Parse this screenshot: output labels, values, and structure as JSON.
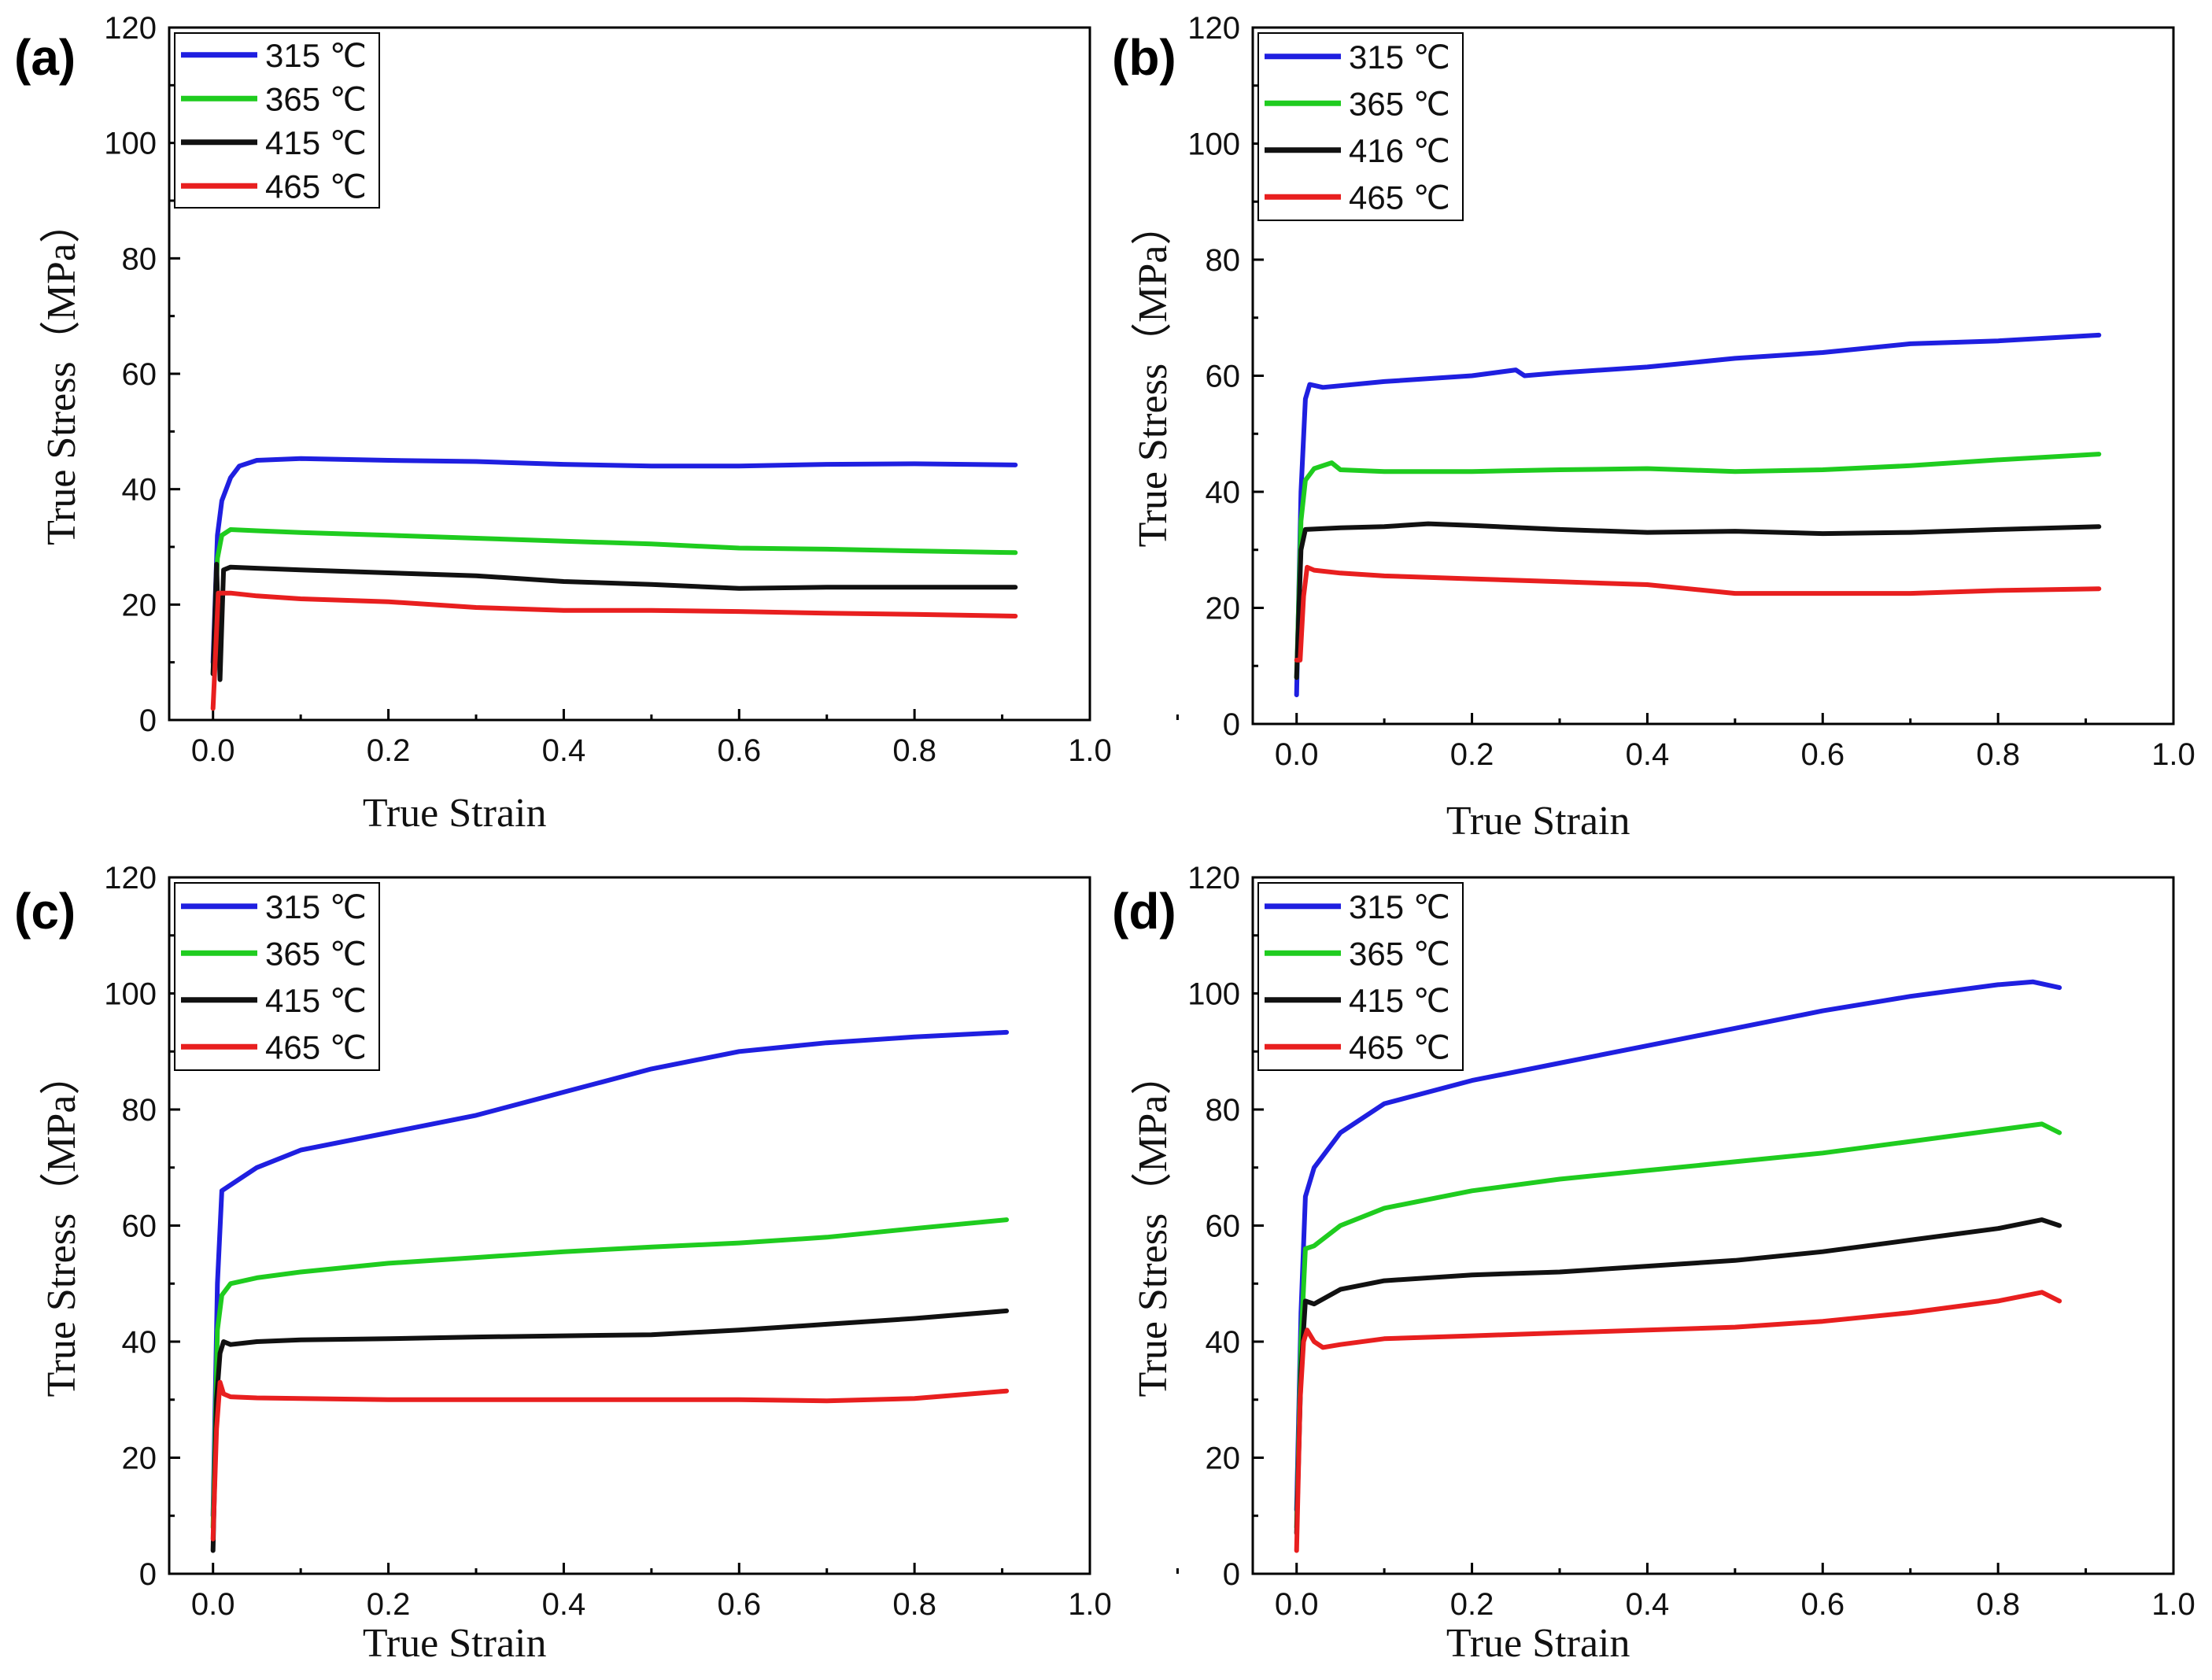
{
  "chart_data": [
    {
      "type": "line",
      "panel_label": "(a)",
      "xlabel": "True Strain",
      "ylabel": "True Stress（MPa）",
      "xlim": [
        -0.05,
        1.0
      ],
      "ylim": [
        0,
        120
      ],
      "xticks": [
        "0.0",
        "0.2",
        "0.4",
        "0.6",
        "0.8",
        "1.0"
      ],
      "yticks": [
        "0",
        "20",
        "40",
        "60",
        "80",
        "100",
        "120"
      ],
      "legend_position": "top-left",
      "series": [
        {
          "name": "315 ℃",
          "color": "#1f1fe0",
          "x": [
            0.0,
            0.005,
            0.01,
            0.02,
            0.03,
            0.05,
            0.1,
            0.2,
            0.3,
            0.4,
            0.5,
            0.6,
            0.7,
            0.8,
            0.915
          ],
          "y": [
            10,
            32,
            38,
            42,
            44,
            45,
            45.3,
            45,
            44.8,
            44.3,
            44,
            44,
            44.3,
            44.4,
            44.2
          ]
        },
        {
          "name": "365 ℃",
          "color": "#1fcc1f",
          "x": [
            0.0,
            0.005,
            0.01,
            0.02,
            0.05,
            0.1,
            0.2,
            0.3,
            0.4,
            0.5,
            0.6,
            0.7,
            0.8,
            0.915
          ],
          "y": [
            8,
            28,
            32,
            33,
            32.8,
            32.5,
            32,
            31.5,
            31,
            30.5,
            29.8,
            29.6,
            29.3,
            29
          ]
        },
        {
          "name": "415 ℃",
          "color": "#111111",
          "x": [
            0.0,
            0.004,
            0.008,
            0.012,
            0.02,
            0.05,
            0.1,
            0.2,
            0.3,
            0.4,
            0.5,
            0.6,
            0.7,
            0.8,
            0.915
          ],
          "y": [
            8,
            27,
            7,
            26,
            26.5,
            26.3,
            26,
            25.5,
            25,
            24,
            23.5,
            22.8,
            23,
            23,
            23
          ]
        },
        {
          "name": "465 ℃",
          "color": "#e81f1f",
          "x": [
            0.0,
            0.003,
            0.006,
            0.012,
            0.02,
            0.05,
            0.1,
            0.2,
            0.3,
            0.4,
            0.5,
            0.6,
            0.7,
            0.8,
            0.915
          ],
          "y": [
            2,
            12,
            22,
            22,
            22,
            21.5,
            21,
            20.5,
            19.5,
            19,
            19,
            18.8,
            18.5,
            18.3,
            18
          ]
        }
      ]
    },
    {
      "type": "line",
      "panel_label": "(b)",
      "xlabel": "True Strain",
      "ylabel": "True Stress（MPa）",
      "xlim": [
        -0.05,
        1.0
      ],
      "ylim": [
        0,
        120
      ],
      "xticks": [
        "0.0",
        "0.2",
        "0.4",
        "0.6",
        "0.8",
        "1.0"
      ],
      "yticks": [
        "0",
        "20",
        "40",
        "60",
        "80",
        "100",
        "120"
      ],
      "legend_position": "top-left",
      "series": [
        {
          "name": "315 ℃",
          "color": "#1f1fe0",
          "x": [
            0.0,
            0.005,
            0.01,
            0.015,
            0.03,
            0.1,
            0.2,
            0.25,
            0.26,
            0.3,
            0.4,
            0.5,
            0.6,
            0.7,
            0.8,
            0.915
          ],
          "y": [
            5,
            40,
            56,
            58.5,
            58,
            59,
            60,
            61,
            60,
            60.5,
            61.5,
            63,
            64,
            65.5,
            66,
            67
          ]
        },
        {
          "name": "365 ℃",
          "color": "#1fcc1f",
          "x": [
            0.0,
            0.005,
            0.01,
            0.02,
            0.04,
            0.05,
            0.1,
            0.2,
            0.3,
            0.4,
            0.5,
            0.6,
            0.7,
            0.8,
            0.915
          ],
          "y": [
            8,
            35,
            42,
            44,
            45,
            43.8,
            43.5,
            43.5,
            43.8,
            44,
            43.5,
            43.8,
            44.5,
            45.5,
            46.5
          ]
        },
        {
          "name": "416 ℃",
          "color": "#111111",
          "x": [
            0.0,
            0.005,
            0.01,
            0.05,
            0.1,
            0.15,
            0.2,
            0.3,
            0.4,
            0.5,
            0.6,
            0.7,
            0.8,
            0.915
          ],
          "y": [
            8,
            30,
            33.5,
            33.8,
            34,
            34.5,
            34.2,
            33.5,
            33,
            33.2,
            32.8,
            33,
            33.5,
            34
          ]
        },
        {
          "name": "465 ℃",
          "color": "#e81f1f",
          "x": [
            0.0,
            0.004,
            0.008,
            0.012,
            0.02,
            0.05,
            0.1,
            0.2,
            0.3,
            0.4,
            0.5,
            0.6,
            0.7,
            0.8,
            0.915
          ],
          "y": [
            11,
            11,
            22,
            27,
            26.5,
            26,
            25.5,
            25,
            24.5,
            24,
            22.5,
            22.5,
            22.5,
            23,
            23.3
          ]
        }
      ]
    },
    {
      "type": "line",
      "panel_label": "(c)",
      "xlabel": "True Strain",
      "ylabel": "True Stress（MPa）",
      "xlim": [
        -0.05,
        1.0
      ],
      "ylim": [
        0,
        120
      ],
      "xticks": [
        "0.0",
        "0.2",
        "0.4",
        "0.6",
        "0.8",
        "1.0"
      ],
      "yticks": [
        "0",
        "20",
        "40",
        "60",
        "80",
        "100",
        "120"
      ],
      "legend_position": "top-left",
      "series": [
        {
          "name": "315 ℃",
          "color": "#1f1fe0",
          "x": [
            0.0,
            0.005,
            0.01,
            0.02,
            0.05,
            0.1,
            0.2,
            0.3,
            0.4,
            0.5,
            0.6,
            0.7,
            0.8,
            0.905
          ],
          "y": [
            10,
            50,
            66,
            67,
            70,
            73,
            76,
            79,
            83,
            87,
            90,
            91.5,
            92.5,
            93.3
          ]
        },
        {
          "name": "365 ℃",
          "color": "#1fcc1f",
          "x": [
            0.0,
            0.005,
            0.01,
            0.02,
            0.05,
            0.1,
            0.2,
            0.3,
            0.4,
            0.5,
            0.6,
            0.7,
            0.8,
            0.905
          ],
          "y": [
            8,
            42,
            48,
            50,
            51,
            52,
            53.5,
            54.5,
            55.5,
            56.3,
            57,
            58,
            59.5,
            61
          ]
        },
        {
          "name": "415 ℃",
          "color": "#111111",
          "x": [
            0.0,
            0.004,
            0.008,
            0.012,
            0.02,
            0.05,
            0.1,
            0.2,
            0.3,
            0.4,
            0.5,
            0.6,
            0.7,
            0.8,
            0.905
          ],
          "y": [
            4,
            30,
            38,
            40,
            39.5,
            40,
            40.3,
            40.5,
            40.8,
            41,
            41.2,
            42,
            43,
            44,
            45.3
          ]
        },
        {
          "name": "465 ℃",
          "color": "#e81f1f",
          "x": [
            0.0,
            0.004,
            0.008,
            0.012,
            0.02,
            0.05,
            0.1,
            0.2,
            0.3,
            0.4,
            0.5,
            0.6,
            0.7,
            0.8,
            0.905
          ],
          "y": [
            6,
            25,
            33,
            31,
            30.5,
            30.3,
            30.2,
            30,
            30,
            30,
            30,
            30,
            29.8,
            30.2,
            31.5
          ]
        }
      ]
    },
    {
      "type": "line",
      "panel_label": "(d)",
      "xlabel": "True Strain",
      "ylabel": "True Stress（MPa）",
      "xlim": [
        -0.05,
        1.0
      ],
      "ylim": [
        0,
        120
      ],
      "xticks": [
        "0.0",
        "0.2",
        "0.4",
        "0.6",
        "0.8",
        "1.0"
      ],
      "yticks": [
        "0",
        "20",
        "40",
        "60",
        "80",
        "100",
        "120"
      ],
      "legend_position": "top-left",
      "series": [
        {
          "name": "315 ℃",
          "color": "#1f1fe0",
          "x": [
            0.0,
            0.005,
            0.01,
            0.02,
            0.05,
            0.1,
            0.2,
            0.3,
            0.4,
            0.5,
            0.6,
            0.7,
            0.8,
            0.84,
            0.87
          ],
          "y": [
            11,
            45,
            65,
            70,
            76,
            81,
            85,
            88,
            91,
            94,
            97,
            99.5,
            101.5,
            102,
            101
          ]
        },
        {
          "name": "365 ℃",
          "color": "#1fcc1f",
          "x": [
            0.0,
            0.005,
            0.01,
            0.02,
            0.05,
            0.1,
            0.2,
            0.3,
            0.4,
            0.5,
            0.6,
            0.7,
            0.8,
            0.85,
            0.87
          ],
          "y": [
            8,
            40,
            56,
            56.5,
            60,
            63,
            66,
            68,
            69.5,
            71,
            72.5,
            74.5,
            76.5,
            77.5,
            76
          ]
        },
        {
          "name": "415 ℃",
          "color": "#111111",
          "x": [
            0.0,
            0.005,
            0.01,
            0.02,
            0.05,
            0.1,
            0.2,
            0.3,
            0.4,
            0.5,
            0.6,
            0.7,
            0.8,
            0.85,
            0.87
          ],
          "y": [
            7,
            35,
            47,
            46.5,
            49,
            50.5,
            51.5,
            52,
            53,
            54,
            55.5,
            57.5,
            59.5,
            61,
            60
          ]
        },
        {
          "name": "465 ℃",
          "color": "#e81f1f",
          "x": [
            0.0,
            0.004,
            0.008,
            0.012,
            0.02,
            0.03,
            0.05,
            0.1,
            0.2,
            0.3,
            0.4,
            0.5,
            0.6,
            0.7,
            0.8,
            0.85,
            0.87
          ],
          "y": [
            4,
            30,
            40,
            42,
            40,
            39,
            39.5,
            40.5,
            41,
            41.5,
            42,
            42.5,
            43.5,
            45,
            47,
            48.5,
            47
          ]
        }
      ]
    }
  ]
}
